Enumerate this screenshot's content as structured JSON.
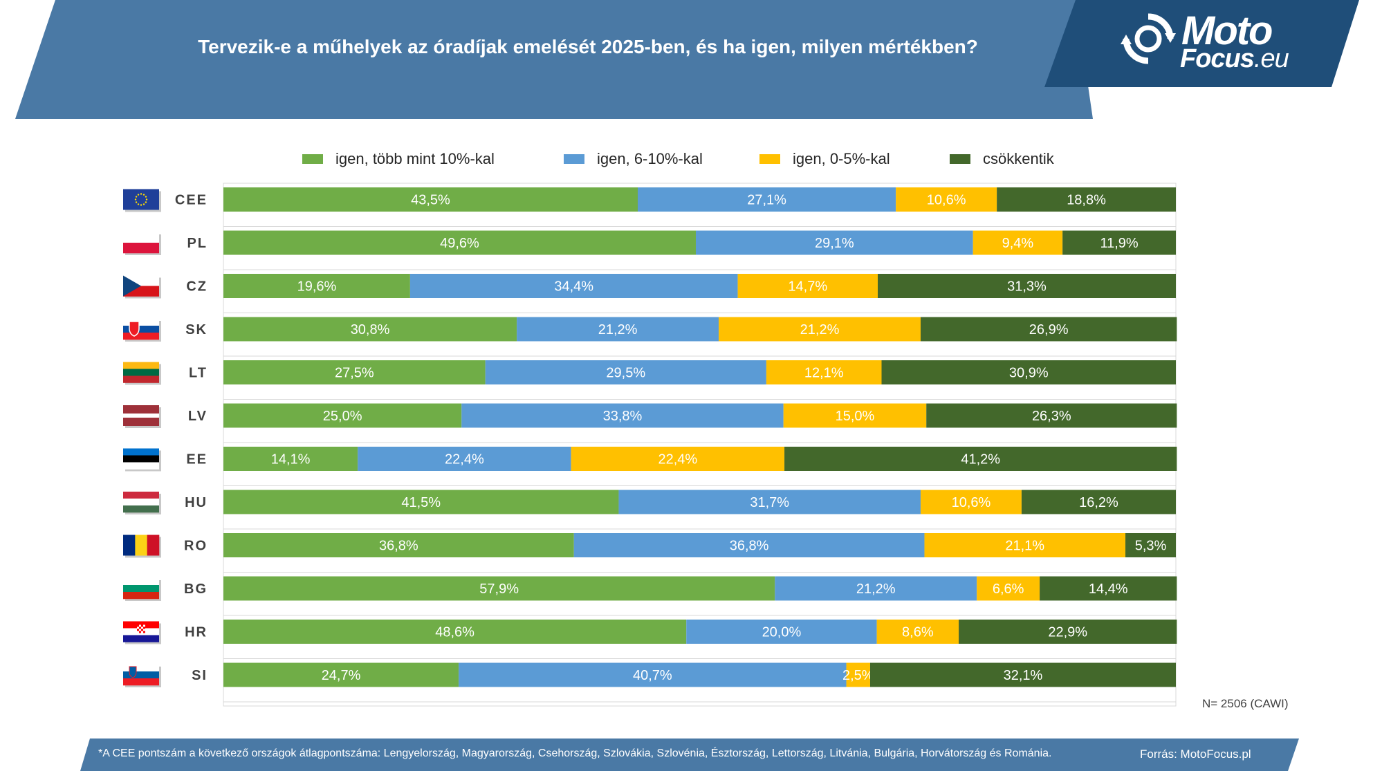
{
  "title": "Tervezik-e a műhelyek az óradíjak emelését 2025-ben, és ha igen, milyen mértékben?",
  "logo": {
    "line1": "Moto",
    "line2": "Focus",
    "tld": ".eu"
  },
  "colors": {
    "header": "#4a79a5",
    "logo_bg": "#1f4e79",
    "footer": "#4a79a5"
  },
  "chart_data": {
    "type": "bar",
    "orientation": "horizontal",
    "stacked": true,
    "percent": true,
    "xlim": [
      0,
      100
    ],
    "legend_position": "top",
    "categories": [
      "CEE",
      "PL",
      "CZ",
      "SK",
      "LT",
      "LV",
      "EE",
      "HU",
      "RO",
      "BG",
      "HR",
      "SI"
    ],
    "flags": [
      "eu-flag-icon",
      "poland-flag-icon",
      "czech-flag-icon",
      "slovakia-flag-icon",
      "lithuania-flag-icon",
      "latvia-flag-icon",
      "estonia-flag-icon",
      "hungary-flag-icon",
      "romania-flag-icon",
      "bulgaria-flag-icon",
      "croatia-flag-icon",
      "slovenia-flag-icon"
    ],
    "series": [
      {
        "name": "igen, több mint 10%-kal",
        "color": "#70ad47",
        "values": [
          43.5,
          49.6,
          19.6,
          30.8,
          27.5,
          25.0,
          14.1,
          41.5,
          36.8,
          57.9,
          48.6,
          24.7
        ],
        "labels": [
          "43,5%",
          "49,6%",
          "19,6%",
          "30,8%",
          "27,5%",
          "25,0%",
          "14,1%",
          "41,5%",
          "36,8%",
          "57,9%",
          "48,6%",
          "24,7%"
        ]
      },
      {
        "name": "igen, 6-10%-kal",
        "color": "#5b9bd5",
        "values": [
          27.1,
          29.1,
          34.4,
          21.2,
          29.5,
          33.8,
          22.4,
          31.7,
          36.8,
          21.2,
          20.0,
          40.7
        ],
        "labels": [
          "27,1%",
          "29,1%",
          "34,4%",
          "21,2%",
          "29,5%",
          "33,8%",
          "22,4%",
          "31,7%",
          "36,8%",
          "21,2%",
          "20,0%",
          "40,7%"
        ]
      },
      {
        "name": "igen, 0-5%-kal",
        "color": "#ffc000",
        "values": [
          10.6,
          9.4,
          14.7,
          21.2,
          12.1,
          15.0,
          22.4,
          10.6,
          21.1,
          6.6,
          8.6,
          2.5
        ],
        "labels": [
          "10,6%",
          "9,4%",
          "14,7%",
          "21,2%",
          "12,1%",
          "15,0%",
          "22,4%",
          "10,6%",
          "21,1%",
          "6,6%",
          "8,6%",
          "2,5%"
        ]
      },
      {
        "name": "csökkentik",
        "color": "#43682b",
        "values": [
          18.8,
          11.9,
          31.3,
          26.9,
          30.9,
          26.3,
          41.2,
          16.2,
          5.3,
          14.4,
          22.9,
          32.1
        ],
        "labels": [
          "18,8%",
          "11,9%",
          "31,3%",
          "26,9%",
          "30,9%",
          "26,3%",
          "41,2%",
          "16,2%",
          "5,3%",
          "14,4%",
          "22,9%",
          "32,1%"
        ]
      }
    ]
  },
  "sample_note": "N= 2506 (CAWI)",
  "footnote": "*A CEE pontszám a következő országok átlagpontszáma: Lengyelország, Magyarország, Csehország, Szlovákia, Szlovénia, Észtország, Lettország, Litvánia, Bulgária, Horvátország és Románia.",
  "source": "Forrás: MotoFocus.pl"
}
